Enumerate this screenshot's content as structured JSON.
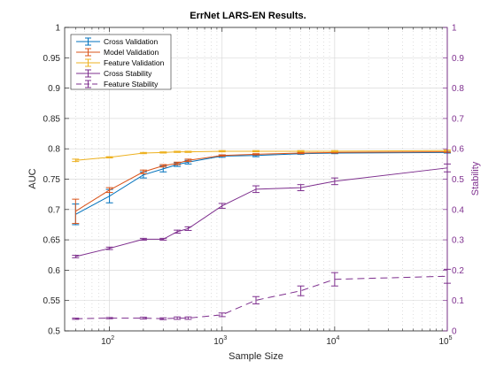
{
  "chart_data": {
    "type": "line",
    "title": "ErrNet LARS-EN Results.",
    "xlabel": "Sample Size",
    "ylabel": "AUC",
    "ylabel_right": "Stability",
    "xscale": "log",
    "xlim": [
      40,
      100000
    ],
    "ylim": [
      0.5,
      1
    ],
    "ylim_right": [
      0,
      1
    ],
    "grid": true,
    "legend_position": "top-left",
    "x_ticks": [
      {
        "value": 100,
        "base": "10",
        "exp": "2"
      },
      {
        "value": 1000,
        "base": "10",
        "exp": "3"
      },
      {
        "value": 10000,
        "base": "10",
        "exp": "4"
      },
      {
        "value": 100000,
        "base": "10",
        "exp": "5"
      }
    ],
    "y_ticks": [
      "0.5",
      "0.55",
      "0.6",
      "0.65",
      "0.7",
      "0.75",
      "0.8",
      "0.85",
      "0.9",
      "0.95",
      "1"
    ],
    "y_ticks_right": [
      "0",
      "0.1",
      "0.2",
      "0.3",
      "0.4",
      "0.5",
      "0.6",
      "0.7",
      "0.8",
      "0.9",
      "1"
    ],
    "x": [
      50,
      100,
      200,
      300,
      400,
      500,
      1000,
      2000,
      5000,
      10000,
      100000
    ],
    "series": [
      {
        "name": "Cross Validation",
        "axis": "left",
        "color": "#0072BD",
        "dash": "solid",
        "values": [
          0.692,
          0.722,
          0.757,
          0.767,
          0.774,
          0.778,
          0.788,
          0.789,
          0.792,
          0.793,
          0.794
        ],
        "errors": [
          0.017,
          0.011,
          0.005,
          0.005,
          0.003,
          0.003,
          0.002,
          0.002,
          0.001,
          0.001,
          0.001
        ]
      },
      {
        "name": "Model Validation",
        "axis": "left",
        "color": "#D95319",
        "dash": "solid",
        "values": [
          0.697,
          0.732,
          0.762,
          0.772,
          0.776,
          0.781,
          0.789,
          0.791,
          0.793,
          0.794,
          0.795
        ],
        "errors": [
          0.02,
          0.004,
          0.003,
          0.002,
          0.002,
          0.002,
          0.001,
          0.001,
          0.001,
          0.001,
          0.001
        ]
      },
      {
        "name": "Feature Validation",
        "axis": "left",
        "color": "#EDB120",
        "dash": "solid",
        "values": [
          0.781,
          0.786,
          0.793,
          0.794,
          0.795,
          0.795,
          0.796,
          0.796,
          0.796,
          0.796,
          0.797
        ],
        "errors": [
          0.002,
          0.001,
          0.001,
          0.001,
          0.001,
          0.001,
          0.001,
          0.001,
          0.001,
          0.001,
          0.001
        ]
      },
      {
        "name": "Cross Stability",
        "axis": "right",
        "color": "#7E2F8E",
        "dash": "solid",
        "values": [
          0.245,
          0.272,
          0.302,
          0.302,
          0.327,
          0.337,
          0.412,
          0.467,
          0.472,
          0.493,
          0.537
        ],
        "errors": [
          0.004,
          0.004,
          0.003,
          0.003,
          0.005,
          0.006,
          0.008,
          0.011,
          0.01,
          0.011,
          0.013
        ]
      },
      {
        "name": "Feature Stability",
        "axis": "right",
        "color": "#7E2F8E",
        "dash": "dashed",
        "values": [
          0.04,
          0.042,
          0.042,
          0.04,
          0.042,
          0.042,
          0.053,
          0.101,
          0.132,
          0.17,
          0.18
        ],
        "errors": [
          0.002,
          0.002,
          0.003,
          0.003,
          0.004,
          0.004,
          0.006,
          0.012,
          0.016,
          0.022,
          0.023
        ]
      }
    ]
  }
}
